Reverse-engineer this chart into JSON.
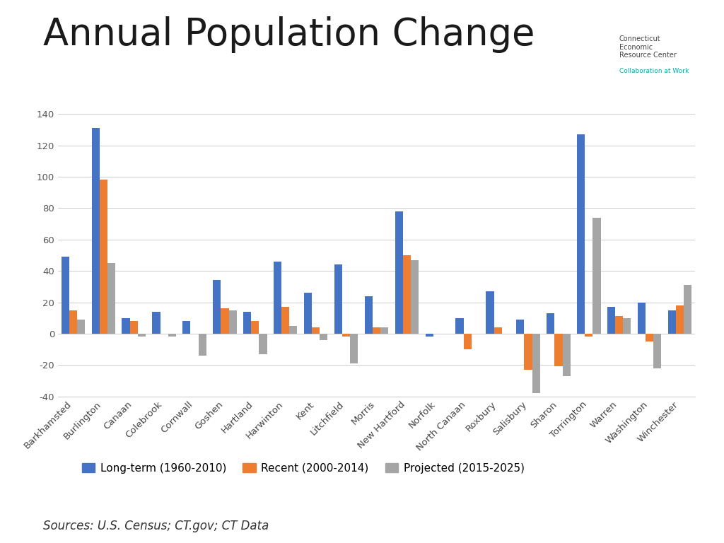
{
  "title": "Annual Population Change",
  "categories": [
    "Barkhamsted",
    "Burlington",
    "Canaan",
    "Colebrook",
    "Cornwall",
    "Goshen",
    "Hartland",
    "Harwinton",
    "Kent",
    "Litchfield",
    "Morris",
    "New Hartford",
    "Norfolk",
    "North Canaan",
    "Roxbury",
    "Salisbury",
    "Sharon",
    "Torrington",
    "Warren",
    "Washington",
    "Winchester"
  ],
  "long_term": [
    49,
    131,
    10,
    14,
    8,
    34,
    14,
    46,
    26,
    44,
    24,
    78,
    -2,
    10,
    27,
    9,
    13,
    127,
    17,
    20,
    15
  ],
  "recent": [
    15,
    98,
    8,
    0,
    0,
    16,
    8,
    17,
    4,
    -2,
    4,
    50,
    0,
    -10,
    4,
    -23,
    -21,
    -2,
    11,
    -5,
    18
  ],
  "projected": [
    9,
    45,
    -2,
    -2,
    -14,
    15,
    -13,
    5,
    -4,
    -19,
    4,
    47,
    0,
    0,
    0,
    -38,
    -27,
    74,
    10,
    -22,
    31
  ],
  "bar_color_longterm": "#4472C4",
  "bar_color_recent": "#ED7D31",
  "bar_color_projected": "#A5A5A5",
  "legend_labels": [
    "Long-term (1960-2010)",
    "Recent (2000-2014)",
    "Projected (2015-2025)"
  ],
  "ylim": [
    -40,
    140
  ],
  "yticks": [
    -40,
    -20,
    0,
    20,
    40,
    60,
    80,
    100,
    120,
    140
  ],
  "source_text": "Sources: U.S. Census; CT.gov; CT Data",
  "background_color": "#FFFFFF",
  "title_fontsize": 38,
  "tick_fontsize": 9.5,
  "legend_fontsize": 11,
  "source_fontsize": 12
}
